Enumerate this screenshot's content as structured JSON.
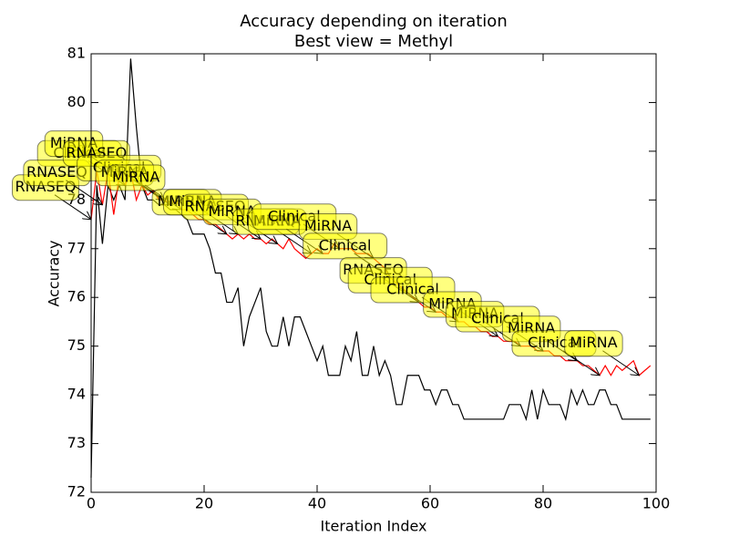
{
  "chart_data": {
    "type": "line",
    "title": "Accuracy depending on iteration",
    "subtitle": "Best view = Methyl",
    "x_label": "Iteration Index",
    "y_label": "Accuracy",
    "xlim": [
      0,
      100
    ],
    "xticks": [
      0,
      20,
      40,
      60,
      80,
      100
    ],
    "ylim": [
      72,
      81
    ],
    "yticks": [
      72,
      73,
      74,
      75,
      76,
      77,
      78,
      79,
      80,
      81
    ],
    "grid": false,
    "series": [
      {
        "color": "#000000",
        "values": [
          72.3,
          78.3,
          77.1,
          78.3,
          78.0,
          78.3,
          78.0,
          80.9,
          79.5,
          78.3,
          78.0,
          78.0,
          77.9,
          77.9,
          77.8,
          77.8,
          77.7,
          77.6,
          77.3,
          77.3,
          77.3,
          77.0,
          76.5,
          76.5,
          75.9,
          75.9,
          76.2,
          75.0,
          75.6,
          75.9,
          76.2,
          75.3,
          75.0,
          75.0,
          75.6,
          75.0,
          75.6,
          75.6,
          75.3,
          75.0,
          74.7,
          75.0,
          74.4,
          74.4,
          74.4,
          75.0,
          74.7,
          75.3,
          74.4,
          74.4,
          75.0,
          74.4,
          74.7,
          74.4,
          73.8,
          73.8,
          74.4,
          74.4,
          74.4,
          74.1,
          74.1,
          73.8,
          74.1,
          74.1,
          73.8,
          73.8,
          73.5,
          73.5,
          73.5,
          73.5,
          73.5,
          73.5,
          73.5,
          73.5,
          73.8,
          73.8,
          73.8,
          73.5,
          74.1,
          73.5,
          74.1,
          73.8,
          73.8,
          73.8,
          73.5,
          74.1,
          73.8,
          74.1,
          73.8,
          73.8,
          74.1,
          74.1,
          73.8,
          73.8,
          73.5,
          73.5,
          73.5,
          73.5,
          73.5,
          73.5
        ]
      },
      {
        "color": "#ff0000",
        "values": [
          77.6,
          78.6,
          77.9,
          78.6,
          77.7,
          78.5,
          78.3,
          78.6,
          78.0,
          78.3,
          78.1,
          78.2,
          78.0,
          78.0,
          77.9,
          78.0,
          77.8,
          77.8,
          77.7,
          77.6,
          77.6,
          77.5,
          77.5,
          77.4,
          77.3,
          77.2,
          77.3,
          77.2,
          77.3,
          77.2,
          77.2,
          77.1,
          77.2,
          77.1,
          77.0,
          77.2,
          77.0,
          76.9,
          76.8,
          76.9,
          77.0,
          76.9,
          76.9,
          77.1,
          77.0,
          77.0,
          77.0,
          76.9,
          76.9,
          76.9,
          76.8,
          76.7,
          76.6,
          76.4,
          76.3,
          76.2,
          76.1,
          76.0,
          75.9,
          75.8,
          75.8,
          75.7,
          75.7,
          75.6,
          75.6,
          75.5,
          75.5,
          75.4,
          75.4,
          75.3,
          75.3,
          75.2,
          75.2,
          75.1,
          75.1,
          75.1,
          75.0,
          75.0,
          75.0,
          74.9,
          74.9,
          74.9,
          74.8,
          74.8,
          74.7,
          74.7,
          74.7,
          74.6,
          74.6,
          74.5,
          74.4,
          74.6,
          74.4,
          74.6,
          74.5,
          74.6,
          74.7,
          74.4,
          74.5,
          74.6
        ]
      }
    ],
    "annotations": [
      {
        "text": "Clinical",
        "x": 6
      },
      {
        "text": "RNASEQ",
        "x": 0
      },
      {
        "text": "RNASEQ",
        "x": 2
      },
      {
        "text": "MiRNA",
        "x": 5
      },
      {
        "text": "RNASEQ",
        "x": 9
      },
      {
        "text": "Clinical",
        "x": 13
      },
      {
        "text": "MiRNA",
        "x": 14
      },
      {
        "text": "MiRNA",
        "x": 16
      },
      {
        "text": "MiRNA",
        "x": 24
      },
      {
        "text": "MiRNA",
        "x": 26
      },
      {
        "text": "RNASEQ",
        "x": 30
      },
      {
        "text": "MiRNA",
        "x": 33
      },
      {
        "text": "RNASEQ",
        "x": 39
      },
      {
        "text": "MiRNA",
        "x": 41
      },
      {
        "text": "Clinical",
        "x": 44
      },
      {
        "text": "MiRNA",
        "x": 50
      },
      {
        "text": "Clinical",
        "x": 53
      },
      {
        "text": "RNASEQ",
        "x": 58
      },
      {
        "text": "Clinical",
        "x": 61
      },
      {
        "text": "Clinical",
        "x": 65
      },
      {
        "text": "MiRNA",
        "x": 72
      },
      {
        "text": "MiRNA",
        "x": 76
      },
      {
        "text": "Clinical",
        "x": 80
      },
      {
        "text": "MiRNA",
        "x": 86
      },
      {
        "text": "Clinical",
        "x": 90
      },
      {
        "text": "MiRNA",
        "x": 97
      }
    ]
  }
}
